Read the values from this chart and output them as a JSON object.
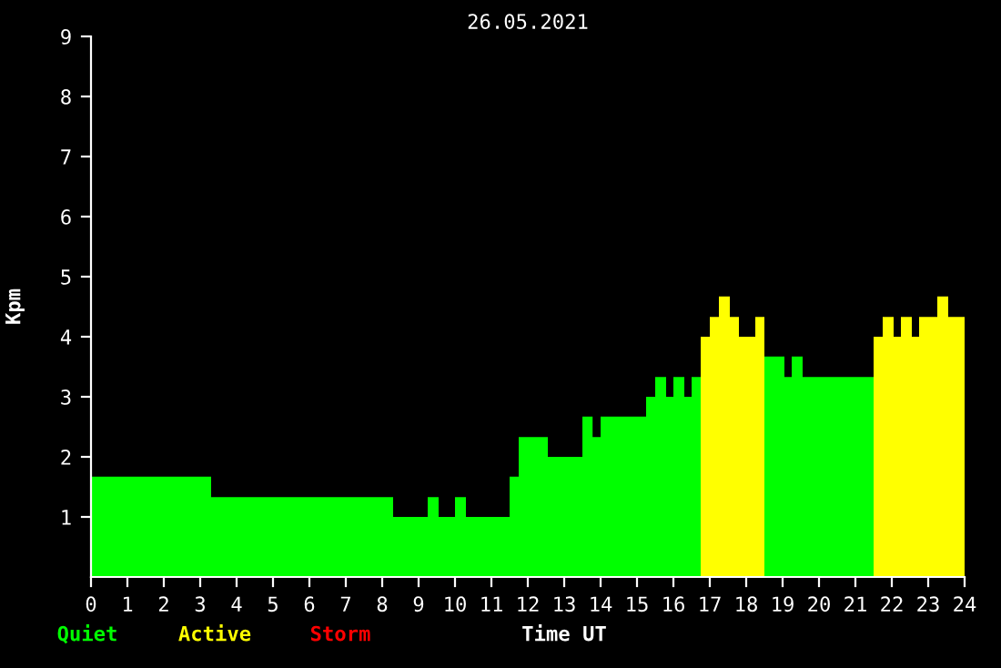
{
  "chart_data": {
    "type": "area",
    "title": "26.05.2021",
    "xlabel": "Time UT",
    "ylabel": "Kpm",
    "x": [
      0,
      3.3,
      8.3,
      9.25,
      9.55,
      10.0,
      10.3,
      11.5,
      11.75,
      12.55,
      13.5,
      13.78,
      14.0,
      15.25,
      15.5,
      15.8,
      16.0,
      16.3,
      16.5,
      16.75,
      17.0,
      17.25,
      17.55,
      17.8,
      18.25,
      18.5,
      19.05,
      19.25,
      19.55,
      21.5,
      21.75,
      22.05,
      22.25,
      22.55,
      22.75,
      23.25,
      23.55,
      24
    ],
    "series": [
      {
        "name": "Quiet",
        "color": "#00ff00",
        "values": [
          1.67,
          1.33,
          1,
          1.33,
          1,
          1.33,
          1,
          1.67,
          2.33,
          2,
          2.67,
          2.33,
          2.67,
          3,
          3.33,
          3,
          3.33,
          3,
          3.33,
          3.33,
          null,
          null,
          null,
          null,
          null,
          3.67,
          3.33,
          3.67,
          3.33,
          3.33,
          null,
          null,
          null,
          null,
          null,
          null,
          null,
          null
        ]
      },
      {
        "name": "Active",
        "color": "#ffff00",
        "values": [
          null,
          null,
          null,
          null,
          null,
          null,
          null,
          null,
          null,
          null,
          null,
          null,
          null,
          null,
          null,
          null,
          null,
          null,
          null,
          4,
          4.33,
          4.67,
          4.33,
          4,
          4.33,
          4.33,
          null,
          null,
          null,
          4,
          4.33,
          4,
          4.33,
          4,
          4.33,
          4.67,
          4.33,
          4.33
        ]
      },
      {
        "name": "Storm",
        "color": "#ff0000",
        "values": [
          null,
          null,
          null,
          null,
          null,
          null,
          null,
          null,
          null,
          null,
          null,
          null,
          null,
          null,
          null,
          null,
          null,
          null,
          null,
          null,
          null,
          null,
          null,
          null,
          null,
          null,
          null,
          null,
          null,
          null,
          null,
          null,
          null,
          null,
          null,
          null,
          null,
          null
        ]
      }
    ],
    "xlim": [
      0,
      24
    ],
    "xticks": [
      0,
      1,
      2,
      3,
      4,
      5,
      6,
      7,
      8,
      9,
      10,
      11,
      12,
      13,
      14,
      15,
      16,
      17,
      18,
      19,
      20,
      21,
      22,
      23,
      24
    ],
    "ylim": [
      0,
      9
    ],
    "yticks": [
      1,
      2,
      3,
      4,
      5,
      6,
      7,
      8,
      9
    ],
    "legend": "bottom"
  }
}
